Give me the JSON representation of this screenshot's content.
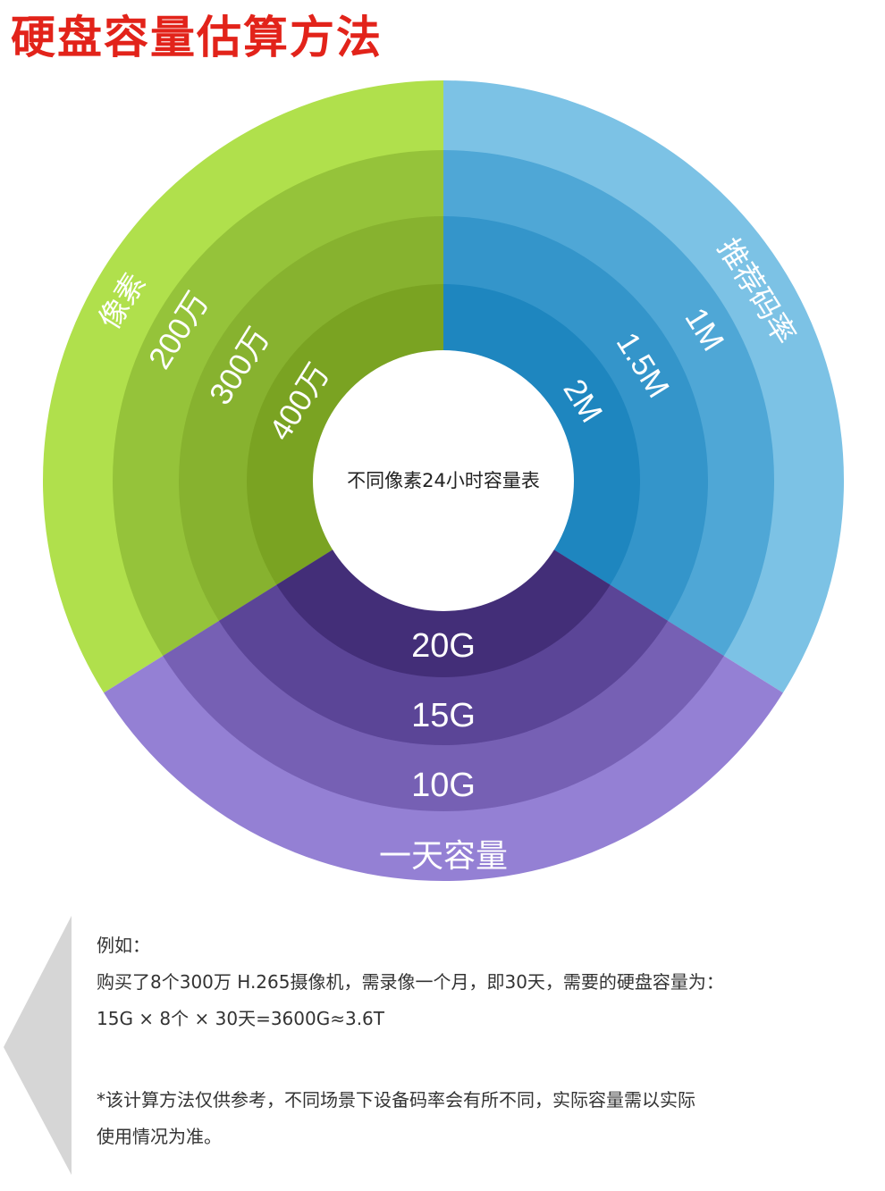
{
  "title": "硬盘容量估算方法",
  "center_label": "不同像素24小时容量表",
  "pixel_section": {
    "heading": "像素",
    "items": [
      "200万",
      "300万",
      "400万"
    ],
    "colors": [
      "#b0e04c",
      "#95c33a",
      "#87b22f",
      "#7aa322"
    ]
  },
  "bitrate_section": {
    "heading": "推荐码率",
    "items": [
      "1M",
      "1.5M",
      "2M"
    ],
    "colors": [
      "#7cc2e5",
      "#4fa7d6",
      "#3495ca",
      "#1e86bf"
    ]
  },
  "capacity_section": {
    "heading": "一天容量",
    "items": [
      "10G",
      "15G",
      "20G"
    ],
    "colors": [
      "#9480d4",
      "#7660b4",
      "#5b4597",
      "#432e78"
    ]
  },
  "example": {
    "label": "例如：",
    "line1": "购买了8个300万 H.265摄像机，需录像一个月，即30天，需要的硬盘容量为：",
    "line2": "15G × 8个 × 30天=3600G≈3.6T"
  },
  "disclaimer": {
    "line1": "*该计算方法仅供参考，不同场景下设备码率会有所不同，实际容量需以实际",
    "line2": "使用情况为准。"
  }
}
